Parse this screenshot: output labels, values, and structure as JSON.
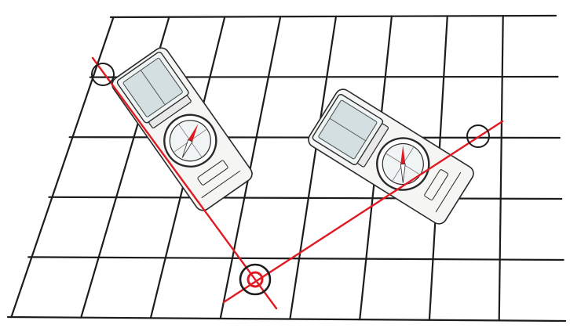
{
  "colors": {
    "background": "#ffffff",
    "grid": "#1c1c1c",
    "bearing_line": "#e01a22",
    "compass_body": "#f5f5f3",
    "compass_outline": "#2a2a2a",
    "mirror_fill": "#d3dfe0",
    "needle": "#e01a22"
  },
  "map_grid": {
    "columns": 8,
    "rows": 5
  },
  "features": [
    {
      "id": "landmark-left",
      "icon": "circle-marker-icon",
      "kind": "sighted-landmark"
    },
    {
      "id": "landmark-right",
      "icon": "circle-marker-icon",
      "kind": "sighted-landmark"
    },
    {
      "id": "position-fix",
      "icon": "target-circle-icon",
      "kind": "intersection-position"
    }
  ],
  "compasses": [
    {
      "id": "compass-left",
      "icon": "baseplate-compass-icon",
      "needle_icon": "red-needle-icon"
    },
    {
      "id": "compass-right",
      "icon": "baseplate-compass-icon",
      "needle_icon": "red-needle-icon"
    }
  ]
}
